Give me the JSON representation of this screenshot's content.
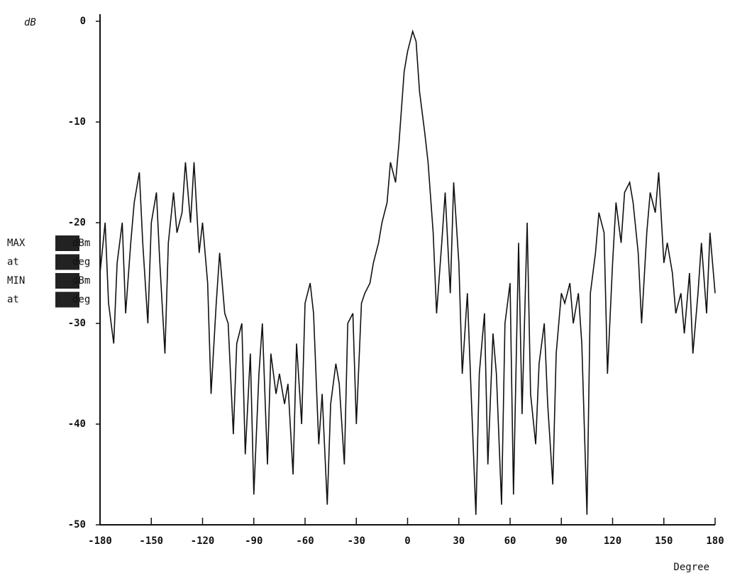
{
  "chart_data": {
    "type": "line",
    "y_label": "dB",
    "x_label": "Degree",
    "readouts": [
      {
        "label": "MAX",
        "unit": "dBm"
      },
      {
        "label": "at",
        "unit": "deg"
      },
      {
        "label": "MIN",
        "unit": "dBm"
      },
      {
        "label": "at",
        "unit": "deg"
      }
    ],
    "xlim": [
      -180,
      180
    ],
    "xticks": [
      -180,
      -150,
      -120,
      -90,
      -60,
      -30,
      0,
      30,
      60,
      90,
      120,
      150,
      180
    ],
    "ylim": [
      -50,
      0
    ],
    "yticks": [
      0,
      -10,
      -20,
      -30,
      -40,
      -50
    ],
    "color": "#111111",
    "x": [
      -180,
      -177,
      -175,
      -172,
      -170,
      -167,
      -165,
      -162,
      -160,
      -157,
      -155,
      -152,
      -150,
      -147,
      -145,
      -142,
      -140,
      -137,
      -135,
      -132,
      -130,
      -127,
      -125,
      -122,
      -120,
      -117,
      -115,
      -112,
      -110,
      -107,
      -105,
      -102,
      -100,
      -97,
      -95,
      -92,
      -90,
      -87,
      -85,
      -82,
      -80,
      -77,
      -75,
      -72,
      -70,
      -67,
      -65,
      -62,
      -60,
      -57,
      -55,
      -52,
      -50,
      -47,
      -45,
      -42,
      -40,
      -37,
      -35,
      -32,
      -30,
      -27,
      -25,
      -22,
      -20,
      -17,
      -15,
      -12,
      -10,
      -7,
      -5,
      -2,
      0,
      3,
      5,
      7,
      10,
      12,
      15,
      17,
      20,
      22,
      25,
      27,
      30,
      32,
      35,
      37,
      40,
      42,
      45,
      47,
      50,
      52,
      55,
      57,
      60,
      62,
      65,
      67,
      70,
      72,
      75,
      77,
      80,
      82,
      85,
      87,
      90,
      92,
      95,
      97,
      100,
      102,
      105,
      107,
      110,
      112,
      115,
      117,
      120,
      122,
      125,
      127,
      130,
      132,
      135,
      137,
      140,
      142,
      145,
      147,
      150,
      152,
      155,
      157,
      160,
      162,
      165,
      167,
      170,
      172,
      175,
      177,
      180
    ],
    "values": [
      -25,
      -20,
      -28,
      -32,
      -24,
      -20,
      -29,
      -22,
      -18,
      -15,
      -22,
      -30,
      -20,
      -17,
      -24,
      -33,
      -22,
      -17,
      -21,
      -19,
      -14,
      -20,
      -14,
      -23,
      -20,
      -26,
      -37,
      -28,
      -23,
      -29,
      -30,
      -41,
      -32,
      -30,
      -43,
      -33,
      -47,
      -35,
      -30,
      -44,
      -33,
      -37,
      -35,
      -38,
      -36,
      -45,
      -32,
      -40,
      -28,
      -26,
      -29,
      -42,
      -37,
      -48,
      -38,
      -34,
      -36,
      -44,
      -30,
      -29,
      -40,
      -28,
      -27,
      -26,
      -24,
      -22,
      -20,
      -18,
      -14,
      -16,
      -12,
      -5,
      -3,
      -1,
      -2,
      -7,
      -11,
      -14,
      -21,
      -29,
      -22,
      -17,
      -27,
      -16,
      -24,
      -35,
      -27,
      -36,
      -49,
      -35,
      -29,
      -44,
      -31,
      -35,
      -48,
      -30,
      -26,
      -47,
      -22,
      -39,
      -20,
      -37,
      -42,
      -34,
      -30,
      -38,
      -46,
      -33,
      -27,
      -28,
      -26,
      -30,
      -27,
      -32,
      -49,
      -27,
      -23,
      -19,
      -21,
      -35,
      -24,
      -18,
      -22,
      -17,
      -16,
      -18,
      -23,
      -30,
      -21,
      -17,
      -19,
      -15,
      -24,
      -22,
      -25,
      -29,
      -27,
      -31,
      -25,
      -33,
      -27,
      -22,
      -29,
      -21,
      -27
    ]
  }
}
